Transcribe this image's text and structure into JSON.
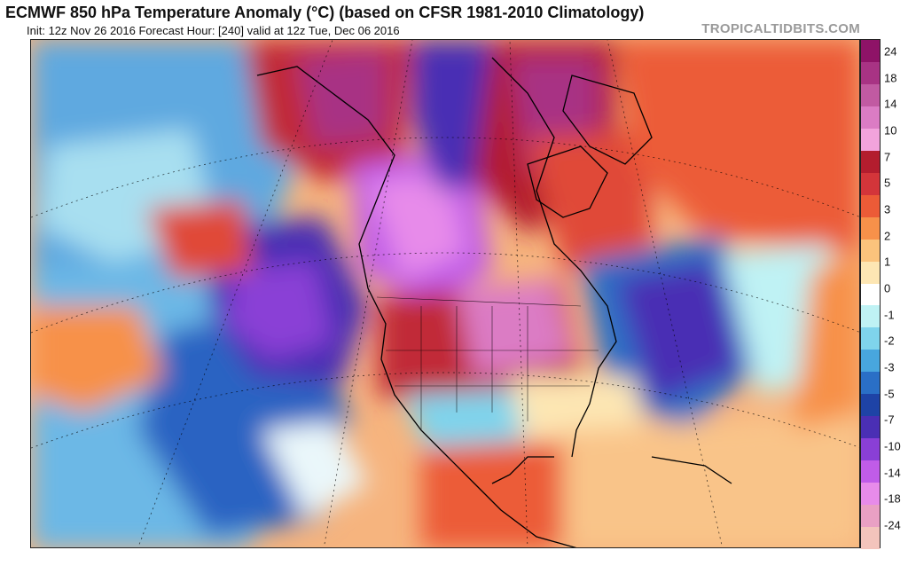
{
  "header": {
    "title": "ECMWF 850 hPa Temperature Anomaly (°C) (based on CFSR 1981-2010 Climatology)",
    "subtitle": "Init: 12z Nov 26 2016   Forecast Hour: [240]   valid at 12z Tue, Dec 06 2016",
    "brand": "TROPICALTIDBITS.COM"
  },
  "colorbar": {
    "labels": [
      "24",
      "18",
      "14",
      "10",
      "7",
      "5",
      "3",
      "2",
      "1",
      "0",
      "-1",
      "-2",
      "-3",
      "-5",
      "-7",
      "-10",
      "-14",
      "-18",
      "-24"
    ],
    "colors": [
      "#8e1367",
      "#a83384",
      "#c15aa2",
      "#db7cc4",
      "#f2a3dc",
      "#b31d2e",
      "#d3353a",
      "#ec5b37",
      "#f7914a",
      "#fbc37c",
      "#fde6b3",
      "#ffffff",
      "#bff2f4",
      "#7fd4ec",
      "#48a6de",
      "#2a6fc6",
      "#1e43a6",
      "#4a2fb4",
      "#8a3fd6",
      "#c05ce8",
      "#e78bea",
      "#e9a0c4",
      "#f3c4bc"
    ]
  },
  "map": {
    "region": "North America / North Atlantic / North Pacific"
  }
}
